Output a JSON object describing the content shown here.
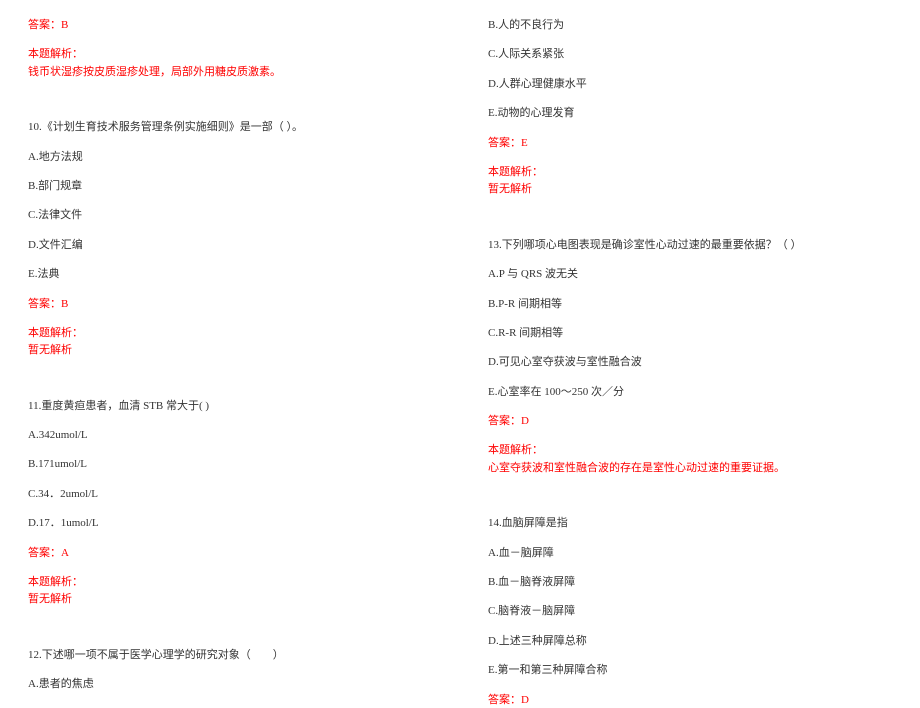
{
  "left": {
    "ans9": "答案：B",
    "exT9a": "本题解析：",
    "exT9b": "钱币状湿疹按皮质湿疹处理，局部外用糖皮质激素。",
    "q10": "10.《计划生育技术服务管理条例实施细则》是一部（ ）。",
    "q10a": "A.地方法规",
    "q10b": "B.部门规章",
    "q10c": "C.法律文件",
    "q10d": "D.文件汇编",
    "q10e": "E.法典",
    "ans10": "答案：B",
    "exT10a": "本题解析：",
    "exT10b": "暂无解析",
    "q11": "11.重度黄疸患者，血清 STB 常大于( )",
    "q11a": "A.342umol/L",
    "q11b": "B.171umol/L",
    "q11c": "C.34．2umol/L",
    "q11d": "D.17．1umol/L",
    "ans11": "答案：A",
    "exT11a": "本题解析：",
    "exT11b": "暂无解析",
    "q12": "12.下述哪一项不属于医学心理学的研究对象（　　）",
    "q12a": "A.患者的焦虑"
  },
  "right": {
    "q12b": "B.人的不良行为",
    "q12c": "C.人际关系紧张",
    "q12d": "D.人群心理健康水平",
    "q12e": "E.动物的心理发育",
    "ans12": "答案：E",
    "exT12a": "本题解析：",
    "exT12b": "暂无解析",
    "q13": "13.下列哪项心电图表现是确诊室性心动过速的最重要依据？（ ）",
    "q13a": "A.P 与 QRS 波无关",
    "q13b": "B.P-R 间期相等",
    "q13c": "C.R-R 间期相等",
    "q13d": "D.可见心室夺获波与室性融合波",
    "q13e": "E.心室率在 100～250 次／分",
    "ans13": "答案：D",
    "exT13a": "本题解析：",
    "exT13b": "心室夺获波和室性融合波的存在是室性心动过速的重要证据。",
    "q14": "14.血脑屏障是指",
    "q14a": "A.血－脑屏障",
    "q14b": "B.血－脑脊液屏障",
    "q14c": "C.脑脊液－脑屏障",
    "q14d": "D.上述三种屏障总称",
    "q14e": "E.第一和第三种屏障合称",
    "ans14": "答案：D"
  }
}
